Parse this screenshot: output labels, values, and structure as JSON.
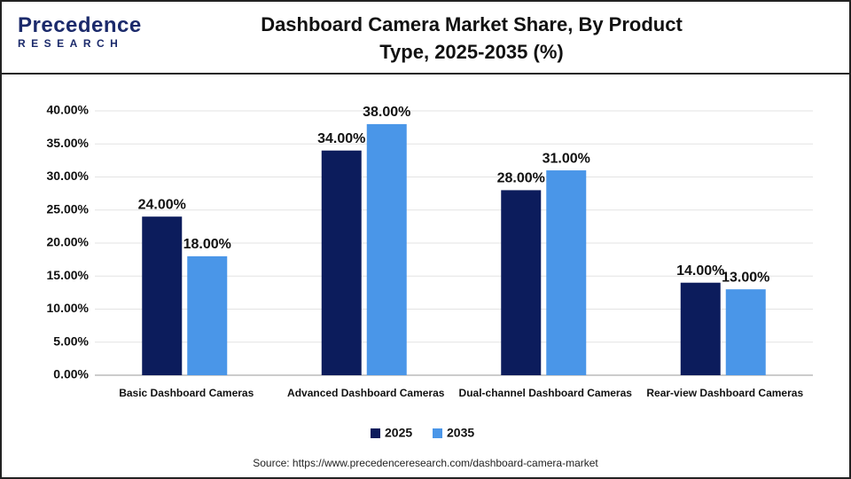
{
  "logo": {
    "name": "Precedence",
    "sub": "RESEARCH"
  },
  "chart_data": {
    "type": "bar",
    "title": "Dashboard Camera Market Share, By Product Type, 2025-2035 (%)",
    "categories": [
      "Basic Dashboard Cameras",
      "Advanced Dashboard Cameras",
      "Dual-channel Dashboard Cameras",
      "Rear-view Dashboard Cameras"
    ],
    "series": [
      {
        "name": "2025",
        "color": "#0c1c5c",
        "values": [
          24,
          34,
          28,
          14
        ],
        "value_labels": [
          "24.00%",
          "34.00%",
          "28.00%",
          "14.00%"
        ]
      },
      {
        "name": "2035",
        "color": "#4a96e8",
        "values": [
          18,
          38,
          31,
          13
        ],
        "value_labels": [
          "18.00%",
          "38.00%",
          "31.00%",
          "13.00%"
        ]
      }
    ],
    "ylim": [
      0,
      40
    ],
    "yticks": [
      {
        "value": 0,
        "label": "0.00%"
      },
      {
        "value": 5,
        "label": "5.00%"
      },
      {
        "value": 10,
        "label": "10.00%"
      },
      {
        "value": 15,
        "label": "15.00%"
      },
      {
        "value": 20,
        "label": "20.00%"
      },
      {
        "value": 25,
        "label": "25.00%"
      },
      {
        "value": 30,
        "label": "30.00%"
      },
      {
        "value": 35,
        "label": "35.00%"
      },
      {
        "value": 40,
        "label": "40.00%"
      }
    ],
    "grid": true,
    "legend": "bottom",
    "source": "Source: https://www.precedenceresearch.com/dashboard-camera-market"
  }
}
